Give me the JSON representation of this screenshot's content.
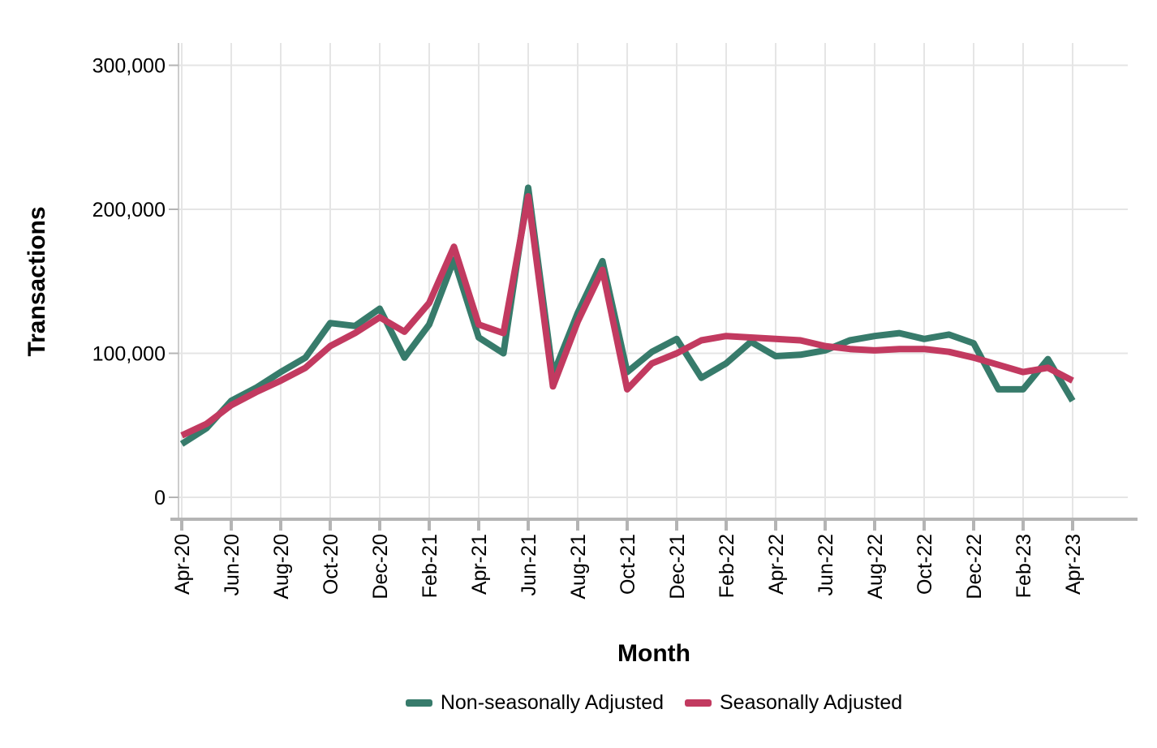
{
  "chart_data": {
    "type": "line",
    "title": "",
    "xlabel": "Month",
    "ylabel": "Transactions",
    "x": [
      "Apr-20",
      "May-20",
      "Jun-20",
      "Jul-20",
      "Aug-20",
      "Sep-20",
      "Oct-20",
      "Nov-20",
      "Dec-20",
      "Jan-21",
      "Feb-21",
      "Mar-21",
      "Apr-21",
      "May-21",
      "Jun-21",
      "Jul-21",
      "Aug-21",
      "Sep-21",
      "Oct-21",
      "Nov-21",
      "Dec-21",
      "Jan-22",
      "Feb-22",
      "Mar-22",
      "Apr-22",
      "May-22",
      "Jun-22",
      "Jul-22",
      "Aug-22",
      "Sep-22",
      "Oct-22",
      "Nov-22",
      "Dec-22",
      "Jan-23",
      "Feb-23",
      "Mar-23",
      "Apr-23"
    ],
    "series": [
      {
        "name": "Non-seasonally Adjusted",
        "color": "#377B6B",
        "values": [
          37000,
          48000,
          67000,
          76000,
          87000,
          97000,
          121000,
          119000,
          131000,
          97000,
          120000,
          165000,
          111000,
          100000,
          215000,
          85000,
          128000,
          164000,
          87000,
          101000,
          110000,
          83000,
          93000,
          108000,
          98000,
          99000,
          102000,
          109000,
          112000,
          114000,
          110000,
          113000,
          107000,
          75000,
          75000,
          96000,
          67000
        ]
      },
      {
        "name": "Seasonally Adjusted",
        "color": "#C23A60",
        "values": [
          43000,
          51000,
          64000,
          73000,
          81000,
          90000,
          105000,
          114000,
          125000,
          115000,
          135000,
          174000,
          120000,
          114000,
          209000,
          77000,
          122000,
          158000,
          75000,
          93000,
          100000,
          109000,
          112000,
          111000,
          110000,
          109000,
          105000,
          103000,
          102000,
          103000,
          103000,
          101000,
          97000,
          92000,
          87000,
          90000,
          81000
        ]
      }
    ],
    "ylim": [
      0,
      300000
    ],
    "y_ticks": [
      {
        "value": 0,
        "label": "0"
      },
      {
        "value": 100000,
        "label": "100,000"
      },
      {
        "value": 200000,
        "label": "200,000"
      },
      {
        "value": 300000,
        "label": "300,000"
      }
    ],
    "x_tick_every": 2,
    "x_tick_label_rotation": -90,
    "grid": "major-only",
    "legend_position": "bottom-center"
  },
  "colors": {
    "background": "#FFFFFF",
    "gridline": "#E5E5E5",
    "x_axis_line": "#B4B4B4",
    "y_axis_line": "#CCCCCC",
    "tick_mark": "#B4B4B4",
    "text": "#000000"
  }
}
